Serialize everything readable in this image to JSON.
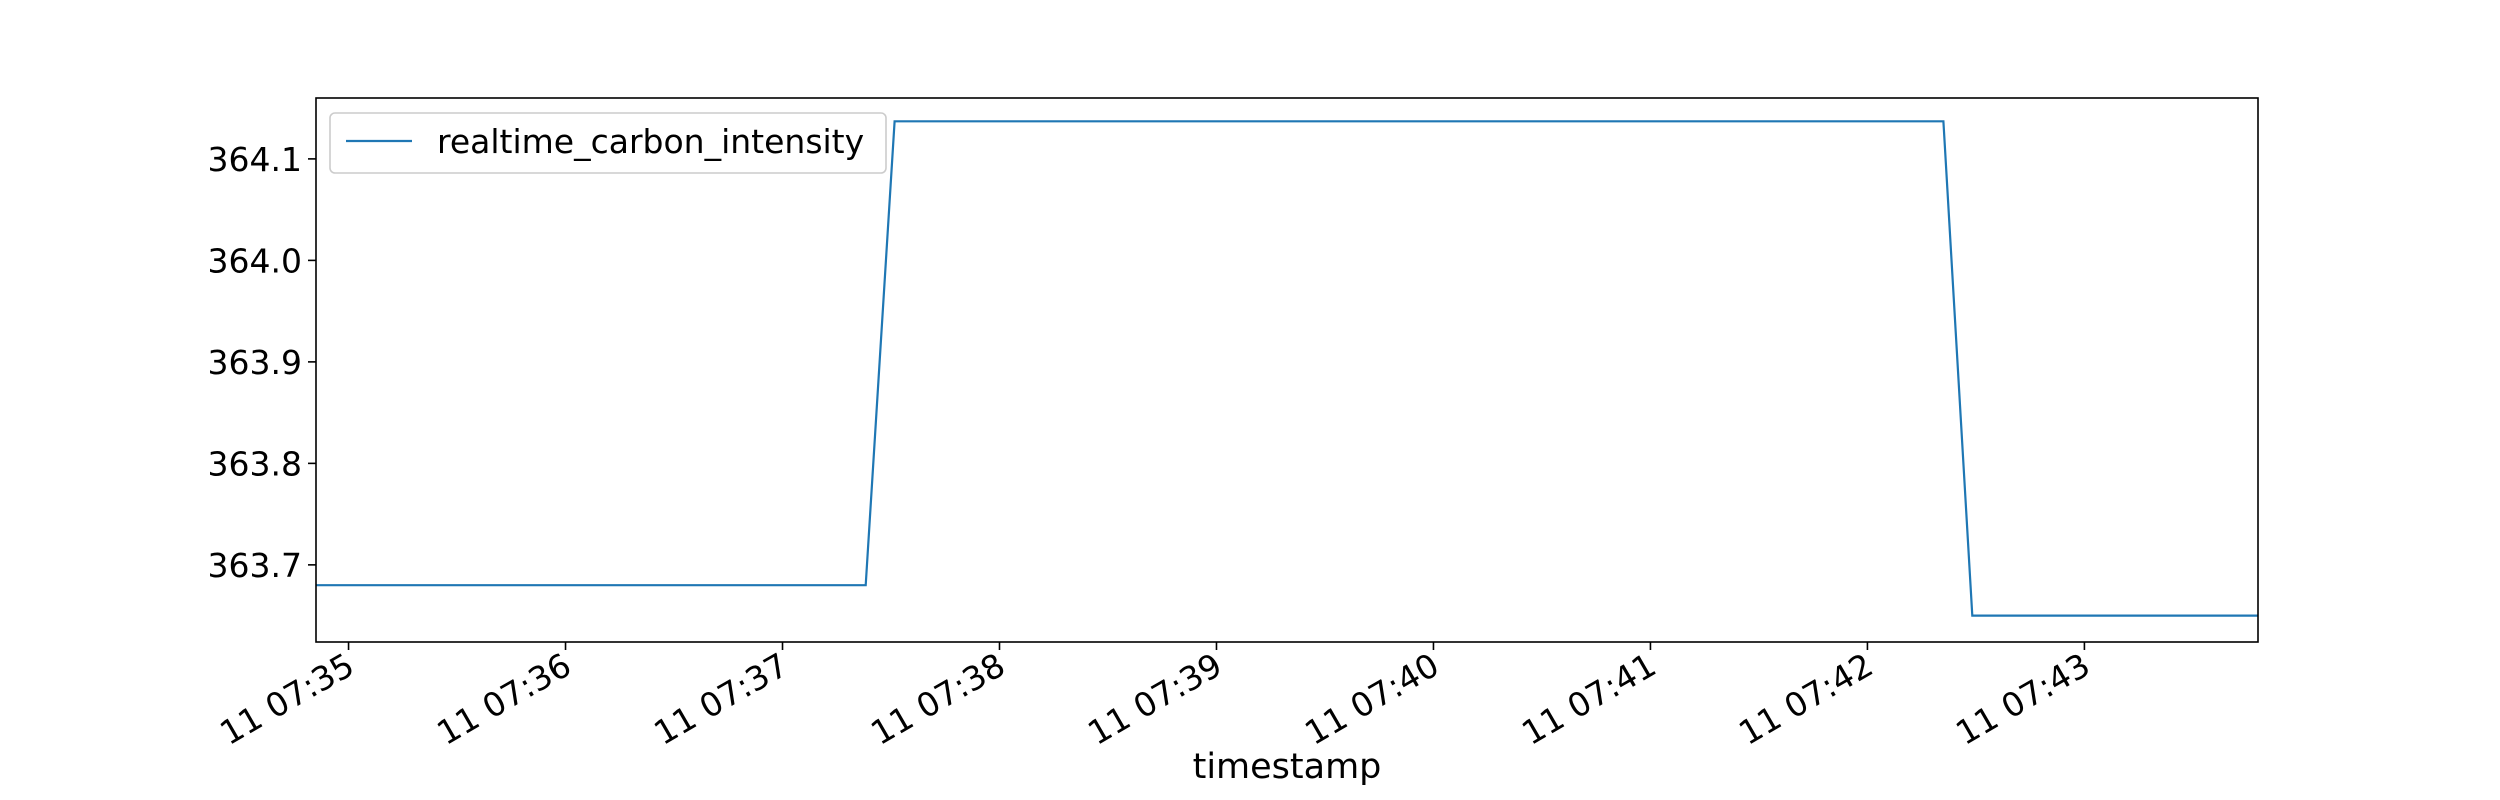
{
  "colors": {
    "background": "#ffffff",
    "axes": "#000000",
    "series_line": "#1f77b4",
    "legend_border": "#cccccc"
  },
  "chart_data": {
    "type": "line",
    "title": "",
    "xlabel": "timestamp",
    "ylabel": "",
    "xlim": [
      "07:34:51",
      "07:43:48"
    ],
    "ylim": [
      363.624,
      364.16
    ],
    "x_ticks": [
      "07:35",
      "07:36",
      "07:37",
      "07:38",
      "07:39",
      "07:40",
      "07:41",
      "07:42",
      "07:43"
    ],
    "x_tick_labels": [
      "11 07:35",
      "11 07:36",
      "11 07:37",
      "11 07:38",
      "11 07:39",
      "11 07:40",
      "11 07:41",
      "11 07:42",
      "11 07:43"
    ],
    "y_ticks": [
      363.7,
      363.8,
      363.9,
      364.0,
      364.1
    ],
    "y_tick_labels": [
      "363.7",
      "363.8",
      "363.9",
      "364.0",
      "364.1"
    ],
    "grid": false,
    "legend": {
      "position": "top-left",
      "entries": [
        "realtime_carbon_intensity"
      ]
    },
    "series": [
      {
        "name": "realtime_carbon_intensity",
        "color": "#1f77b4",
        "x": [
          "07:34:51",
          "07:37:23",
          "07:37:31",
          "07:42:21",
          "07:42:29",
          "07:43:48"
        ],
        "y": [
          363.68,
          363.68,
          364.137,
          364.137,
          363.65,
          363.65
        ]
      }
    ]
  }
}
